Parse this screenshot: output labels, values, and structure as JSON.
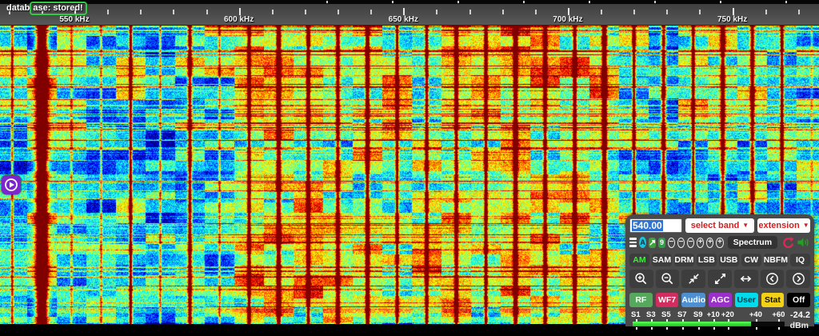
{
  "status_message": {
    "prefix": "datab",
    "highlight": "ase: stored!"
  },
  "frequency_scale": {
    "unit": "kHz",
    "labels": [
      "550 kHz",
      "600 kHz",
      "650 kHz",
      "700 kHz",
      "750 kHz"
    ],
    "label_freqs_khz": [
      550,
      600,
      650,
      700,
      750
    ],
    "minor_tick_step_khz": 10
  },
  "waterfall": {
    "tuned_freq_khz": 540,
    "strong_carriers_khz": [
      540,
      567,
      585,
      603,
      612,
      621,
      630,
      639,
      648,
      657,
      666,
      675,
      684,
      693,
      702,
      711,
      720,
      729,
      738,
      747,
      756,
      765
    ]
  },
  "player_button": {
    "icon": "play"
  },
  "panel": {
    "frequency_input": {
      "value": "540.00"
    },
    "band_select": {
      "label": "select band",
      "chevron": "▼"
    },
    "extension_select": {
      "label": "extension",
      "chevron": "▼"
    },
    "toolbar": {
      "aperture_badge": "A",
      "colormap_badge": "9",
      "zoom_out_glyph": "−",
      "zoom_in_glyph": "+",
      "spectrum_label": "Spectrum"
    },
    "modes": {
      "items": [
        "AM",
        "SAM",
        "DRM",
        "LSB",
        "USB",
        "CW",
        "NBFM",
        "IQ"
      ],
      "active": "AM"
    },
    "tabs": [
      {
        "label": "RF",
        "bg": "#56a85c",
        "fg": "#ffffff"
      },
      {
        "label": "WF7",
        "bg": "#d12d5e",
        "fg": "#ffffff"
      },
      {
        "label": "Audio",
        "bg": "#4d8fd1",
        "fg": "#ffffff"
      },
      {
        "label": "AGC",
        "bg": "#9b2fc9",
        "fg": "#ffffff"
      },
      {
        "label": "User",
        "bg": "#00dcec",
        "fg": "#063a4a"
      },
      {
        "label": "Stat",
        "bg": "#f3d117",
        "fg": "#111111"
      },
      {
        "label": "Off",
        "bg": "#000000",
        "fg": "#ffffff"
      }
    ],
    "smeter": {
      "tick_labels": [
        "S1",
        "S3",
        "S5",
        "S7",
        "S9",
        "+10",
        "+20",
        "+40",
        "+60"
      ],
      "tick_positions_pct": [
        2,
        12,
        22,
        32.5,
        43,
        53,
        62.5,
        81,
        96
      ],
      "value": "-24.2",
      "unit": "dBm",
      "fill_pct": 78,
      "fill_color": "#22d822"
    }
  },
  "colors": {
    "panel_bg": "#4a4a4a",
    "scale_bg": "#4a4a4a",
    "dropdown_text": "#cc2222",
    "message_green": "#2ecc40",
    "play_purple": "#7d26cd",
    "refresh_icon": "#e02858",
    "speaker_icon": "#21a121",
    "mode_active": "#3aef3a"
  }
}
